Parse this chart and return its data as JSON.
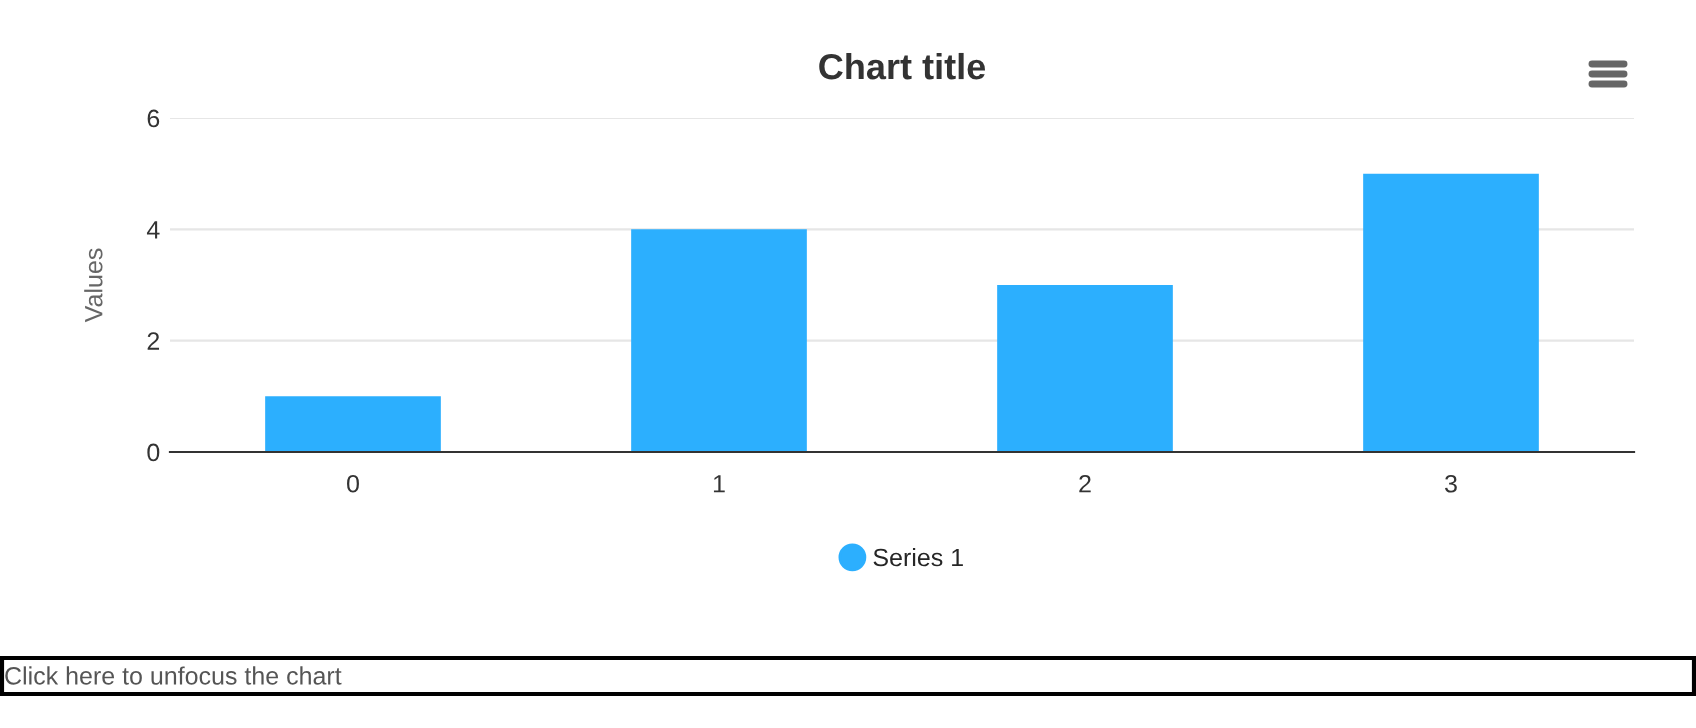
{
  "chart_data": {
    "type": "bar",
    "title": "Chart title",
    "ylabel": "Values",
    "categories": [
      "0",
      "1",
      "2",
      "3"
    ],
    "series": [
      {
        "name": "Series 1",
        "color": "#2caffe",
        "values": [
          1,
          4,
          3,
          5
        ]
      }
    ],
    "ylim": [
      0,
      6
    ],
    "yticks": [
      0,
      2,
      4,
      6
    ],
    "grid": "y",
    "legend": "bottom",
    "annotations": [
      "Click here to unfocus the chart"
    ]
  }
}
